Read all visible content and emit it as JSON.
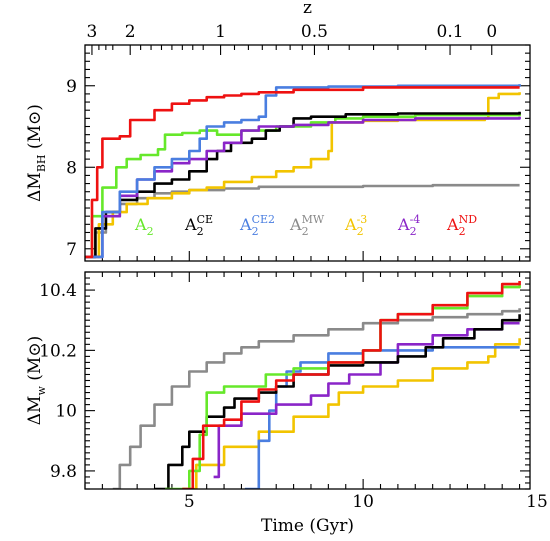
{
  "chart_data": [
    {
      "type": "line",
      "panel": "top",
      "xlabel": "",
      "ylabel": "ΔM_BH (M⊙)",
      "xlim": [
        2,
        14.8
      ],
      "ylim": [
        6.85,
        9.5
      ],
      "yticks": [
        7,
        8,
        9
      ],
      "top_axis": {
        "label": "z",
        "ticks": [
          {
            "label": "3",
            "t": 2.2
          },
          {
            "label": "2",
            "t": 3.3
          },
          {
            "label": "1",
            "t": 5.9
          },
          {
            "label": "0.5",
            "t": 8.6
          },
          {
            "label": "0.1",
            "t": 12.5
          },
          {
            "label": "0",
            "t": 13.7
          }
        ]
      },
      "legend": [
        "A_2",
        "A_2^CE",
        "A_2^CE2",
        "A_2^MW",
        "A_2^-3",
        "A_2^-4",
        "A_2^ND"
      ],
      "series": [
        {
          "name": "A2^MW",
          "key": "gray",
          "color": "#8a8a8a",
          "points": [
            [
              2.0,
              6.9
            ],
            [
              2.3,
              7.2
            ],
            [
              2.6,
              7.4
            ],
            [
              3.0,
              7.55
            ],
            [
              3.5,
              7.62
            ],
            [
              4.0,
              7.68
            ],
            [
              4.5,
              7.7
            ],
            [
              5.0,
              7.72
            ],
            [
              6.0,
              7.74
            ],
            [
              7.0,
              7.76
            ],
            [
              8.0,
              7.76
            ],
            [
              10.0,
              7.77
            ],
            [
              12.0,
              7.78
            ],
            [
              14.5,
              7.78
            ]
          ]
        },
        {
          "name": "A2^-3",
          "key": "yellow",
          "color": "#f2c400",
          "points": [
            [
              2.0,
              6.9
            ],
            [
              2.4,
              7.3
            ],
            [
              2.8,
              7.45
            ],
            [
              3.2,
              7.55
            ],
            [
              3.8,
              7.62
            ],
            [
              4.5,
              7.68
            ],
            [
              5.0,
              7.72
            ],
            [
              5.5,
              7.75
            ],
            [
              6.0,
              7.82
            ],
            [
              6.8,
              7.88
            ],
            [
              7.5,
              7.95
            ],
            [
              8.0,
              8.0
            ],
            [
              8.5,
              8.1
            ],
            [
              9.0,
              8.2
            ],
            [
              9.1,
              8.55
            ],
            [
              10.0,
              8.57
            ],
            [
              11.0,
              8.58
            ],
            [
              13.5,
              8.6
            ],
            [
              13.6,
              8.85
            ],
            [
              13.9,
              8.9
            ],
            [
              14.5,
              8.92
            ]
          ]
        },
        {
          "name": "A2",
          "key": "green",
          "color": "#66e82a",
          "points": [
            [
              2.0,
              6.9
            ],
            [
              2.2,
              7.4
            ],
            [
              2.5,
              7.75
            ],
            [
              2.9,
              8.0
            ],
            [
              3.2,
              8.1
            ],
            [
              3.6,
              8.15
            ],
            [
              4.1,
              8.22
            ],
            [
              4.3,
              8.4
            ],
            [
              4.8,
              8.42
            ],
            [
              5.3,
              8.45
            ],
            [
              5.8,
              8.4
            ],
            [
              6.5,
              8.45
            ],
            [
              7.5,
              8.5
            ],
            [
              8.5,
              8.55
            ],
            [
              9.2,
              8.6
            ],
            [
              10.0,
              8.62
            ],
            [
              11.5,
              8.64
            ],
            [
              14.5,
              8.66
            ]
          ]
        },
        {
          "name": "A2^CE",
          "key": "black",
          "color": "#000000",
          "points": [
            [
              2.0,
              6.9
            ],
            [
              2.3,
              7.25
            ],
            [
              2.6,
              7.45
            ],
            [
              3.0,
              7.6
            ],
            [
              3.5,
              7.7
            ],
            [
              4.0,
              7.8
            ],
            [
              4.5,
              7.85
            ],
            [
              5.0,
              7.95
            ],
            [
              5.5,
              8.1
            ],
            [
              5.8,
              8.2
            ],
            [
              6.2,
              8.3
            ],
            [
              6.8,
              8.35
            ],
            [
              7.2,
              8.45
            ],
            [
              7.6,
              8.5
            ],
            [
              8.0,
              8.6
            ],
            [
              8.5,
              8.62
            ],
            [
              9.5,
              8.65
            ],
            [
              11.0,
              8.66
            ],
            [
              14.5,
              8.68
            ]
          ]
        },
        {
          "name": "A2^-4",
          "key": "purple",
          "color": "#8a25c8",
          "points": [
            [
              2.0,
              6.9
            ],
            [
              2.5,
              7.4
            ],
            [
              3.0,
              7.65
            ],
            [
              3.5,
              7.85
            ],
            [
              4.0,
              7.95
            ],
            [
              4.5,
              8.05
            ],
            [
              5.0,
              8.1
            ],
            [
              5.5,
              8.2
            ],
            [
              6.0,
              8.3
            ],
            [
              6.5,
              8.45
            ],
            [
              7.0,
              8.5
            ],
            [
              8.0,
              8.52
            ],
            [
              9.0,
              8.55
            ],
            [
              10.0,
              8.58
            ],
            [
              11.5,
              8.6
            ],
            [
              14.5,
              8.62
            ]
          ]
        },
        {
          "name": "A2^CE2",
          "key": "blue",
          "color": "#4a7ee0",
          "points": [
            [
              2.0,
              6.9
            ],
            [
              2.5,
              7.45
            ],
            [
              3.0,
              7.7
            ],
            [
              3.5,
              7.85
            ],
            [
              4.0,
              8.0
            ],
            [
              4.5,
              8.1
            ],
            [
              5.0,
              8.2
            ],
            [
              5.3,
              8.35
            ],
            [
              5.5,
              8.5
            ],
            [
              6.0,
              8.55
            ],
            [
              6.5,
              8.58
            ],
            [
              7.0,
              8.62
            ],
            [
              7.2,
              8.88
            ],
            [
              7.5,
              8.98
            ],
            [
              9.0,
              8.99
            ],
            [
              11.0,
              9.0
            ],
            [
              14.5,
              9.02
            ]
          ]
        },
        {
          "name": "A2^ND",
          "key": "red",
          "color": "#ee1111",
          "points": [
            [
              2.0,
              6.9
            ],
            [
              2.2,
              7.6
            ],
            [
              2.35,
              8.0
            ],
            [
              2.5,
              8.35
            ],
            [
              3.0,
              8.38
            ],
            [
              3.3,
              8.58
            ],
            [
              4.0,
              8.7
            ],
            [
              4.5,
              8.78
            ],
            [
              5.0,
              8.82
            ],
            [
              5.5,
              8.86
            ],
            [
              6.0,
              8.88
            ],
            [
              6.5,
              8.9
            ],
            [
              7.0,
              8.92
            ],
            [
              8.0,
              8.95
            ],
            [
              10.0,
              8.98
            ],
            [
              14.5,
              8.98
            ]
          ]
        }
      ]
    },
    {
      "type": "line",
      "panel": "bottom",
      "xlabel": "Time (Gyr)",
      "ylabel": "ΔM_w (M⊙)",
      "xlim": [
        2,
        14.8
      ],
      "ylim": [
        9.74,
        10.46
      ],
      "xticks": [
        5,
        10,
        15
      ],
      "yticks": [
        9.8,
        10,
        10.2,
        10.4
      ],
      "series": [
        {
          "name": "A2^MW",
          "key": "gray",
          "color": "#8a8a8a",
          "points": [
            [
              2.8,
              9.74
            ],
            [
              3.0,
              9.82
            ],
            [
              3.3,
              9.88
            ],
            [
              3.6,
              9.95
            ],
            [
              4.0,
              10.02
            ],
            [
              4.5,
              10.08
            ],
            [
              5.0,
              10.13
            ],
            [
              5.5,
              10.16
            ],
            [
              6.0,
              10.19
            ],
            [
              6.5,
              10.21
            ],
            [
              7.0,
              10.23
            ],
            [
              8.0,
              10.25
            ],
            [
              9.0,
              10.27
            ],
            [
              10.0,
              10.29
            ],
            [
              11.0,
              10.3
            ],
            [
              12.0,
              10.31
            ],
            [
              13.0,
              10.32
            ],
            [
              14.0,
              10.33
            ],
            [
              14.5,
              10.34
            ]
          ]
        },
        {
          "name": "A2^-3",
          "key": "yellow",
          "color": "#f2c400",
          "points": [
            [
              4.8,
              9.74
            ],
            [
              5.2,
              9.82
            ],
            [
              6.0,
              9.88
            ],
            [
              7.0,
              9.93
            ],
            [
              8.0,
              9.98
            ],
            [
              9.0,
              10.02
            ],
            [
              9.3,
              10.06
            ],
            [
              10.0,
              10.08
            ],
            [
              11.0,
              10.1
            ],
            [
              12.0,
              10.14
            ],
            [
              13.0,
              10.16
            ],
            [
              13.6,
              10.18
            ],
            [
              13.8,
              10.22
            ],
            [
              14.5,
              10.24
            ]
          ]
        },
        {
          "name": "A2^CE2",
          "key": "blue",
          "color": "#4a7ee0",
          "points": [
            [
              6.6,
              9.74
            ],
            [
              7.0,
              9.9
            ],
            [
              7.3,
              10.0
            ],
            [
              7.5,
              10.08
            ],
            [
              7.8,
              10.13
            ],
            [
              8.2,
              10.16
            ],
            [
              9.0,
              10.19
            ],
            [
              10.0,
              10.2
            ],
            [
              12.0,
              10.21
            ],
            [
              13.6,
              10.21
            ],
            [
              14.5,
              10.21
            ]
          ]
        },
        {
          "name": "A2^-4",
          "key": "purple",
          "color": "#8a25c8",
          "points": [
            [
              5.7,
              9.78
            ],
            [
              5.85,
              9.95
            ],
            [
              6.5,
              9.99
            ],
            [
              7.5,
              10.02
            ],
            [
              8.5,
              10.05
            ],
            [
              9.0,
              10.09
            ],
            [
              9.6,
              10.12
            ],
            [
              10.5,
              10.16
            ],
            [
              11.0,
              10.22
            ],
            [
              12.0,
              10.25
            ],
            [
              13.0,
              10.27
            ],
            [
              14.0,
              10.29
            ],
            [
              14.5,
              10.29
            ]
          ]
        },
        {
          "name": "A2^CE",
          "key": "black",
          "color": "#000000",
          "points": [
            [
              4.0,
              9.74
            ],
            [
              4.4,
              9.82
            ],
            [
              4.8,
              9.88
            ],
            [
              5.0,
              9.93
            ],
            [
              5.5,
              9.98
            ],
            [
              6.0,
              10.01
            ],
            [
              6.3,
              10.04
            ],
            [
              7.0,
              10.06
            ],
            [
              7.5,
              10.08
            ],
            [
              8.0,
              10.12
            ],
            [
              9.0,
              10.15
            ],
            [
              10.0,
              10.16
            ],
            [
              11.0,
              10.18
            ],
            [
              11.8,
              10.21
            ],
            [
              12.3,
              10.24
            ],
            [
              13.2,
              10.27
            ],
            [
              14.0,
              10.3
            ],
            [
              14.5,
              10.32
            ]
          ]
        },
        {
          "name": "A2",
          "key": "green",
          "color": "#66e82a",
          "points": [
            [
              4.3,
              9.74
            ],
            [
              5.0,
              9.8
            ],
            [
              5.3,
              9.92
            ],
            [
              5.5,
              10.06
            ],
            [
              6.0,
              10.08
            ],
            [
              7.0,
              10.08
            ],
            [
              7.2,
              10.12
            ],
            [
              8.0,
              10.14
            ],
            [
              9.0,
              10.16
            ],
            [
              10.0,
              10.2
            ],
            [
              10.5,
              10.3
            ],
            [
              11.0,
              10.32
            ],
            [
              12.0,
              10.34
            ],
            [
              13.0,
              10.38
            ],
            [
              14.0,
              10.41
            ],
            [
              14.5,
              10.42
            ]
          ]
        },
        {
          "name": "A2^ND",
          "key": "red",
          "color": "#ee1111",
          "points": [
            [
              4.8,
              9.74
            ],
            [
              5.1,
              9.84
            ],
            [
              5.4,
              9.95
            ],
            [
              6.0,
              9.97
            ],
            [
              6.5,
              10.03
            ],
            [
              7.0,
              10.07
            ],
            [
              7.5,
              10.1
            ],
            [
              8.0,
              10.12
            ],
            [
              9.0,
              10.16
            ],
            [
              10.0,
              10.2
            ],
            [
              10.5,
              10.3
            ],
            [
              11.0,
              10.32
            ],
            [
              12.0,
              10.35
            ],
            [
              13.0,
              10.39
            ],
            [
              14.0,
              10.42
            ],
            [
              14.5,
              10.43
            ]
          ]
        }
      ]
    }
  ]
}
